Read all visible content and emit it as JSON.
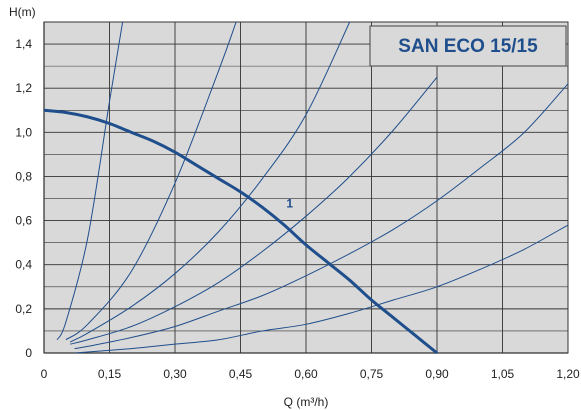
{
  "chart_data": {
    "type": "line",
    "title": "SAN ECO 15/15",
    "xlabel": "Q (m³/h)",
    "ylabel": "H(m)",
    "xlim": [
      0,
      1.2
    ],
    "ylim": [
      0,
      1.5
    ],
    "x_ticks": [
      "0",
      "0,15",
      "0,30",
      "0,45",
      "0,60",
      "0,75",
      "0,90",
      "1,05",
      "1,20"
    ],
    "x_tick_values": [
      0,
      0.15,
      0.3,
      0.45,
      0.6,
      0.75,
      0.9,
      1.05,
      1.2
    ],
    "y_ticks": [
      "0",
      "0,2",
      "0,4",
      "0,6",
      "0,8",
      "1,0",
      "1,2",
      "1,4"
    ],
    "y_tick_values": [
      0,
      0.2,
      0.4,
      0.6,
      0.8,
      1.0,
      1.2,
      1.4
    ],
    "grid": true,
    "background_color": "#d9d9d9",
    "curve_color": "#1f4e8c",
    "pump_curve": {
      "name": "1",
      "x": [
        0,
        0.05,
        0.1,
        0.15,
        0.2,
        0.25,
        0.3,
        0.35,
        0.4,
        0.45,
        0.5,
        0.55,
        0.6,
        0.65,
        0.7,
        0.75,
        0.8,
        0.85,
        0.9
      ],
      "y": [
        1.1,
        1.09,
        1.07,
        1.04,
        1.0,
        0.96,
        0.91,
        0.85,
        0.79,
        0.73,
        0.66,
        0.58,
        0.49,
        0.41,
        0.33,
        0.24,
        0.16,
        0.08,
        0.0
      ]
    },
    "system_curves": [
      {
        "x": [
          0.03,
          0.05,
          0.1,
          0.15,
          0.18
        ],
        "y": [
          0.06,
          0.14,
          0.52,
          1.14,
          1.5
        ]
      },
      {
        "x": [
          0.05,
          0.1,
          0.2,
          0.3,
          0.4,
          0.44
        ],
        "y": [
          0.06,
          0.13,
          0.37,
          0.77,
          1.28,
          1.5
        ]
      },
      {
        "x": [
          0.06,
          0.1,
          0.2,
          0.3,
          0.4,
          0.5,
          0.6,
          0.7
        ],
        "y": [
          0.05,
          0.09,
          0.21,
          0.36,
          0.55,
          0.79,
          1.08,
          1.5
        ]
      },
      {
        "x": [
          0.06,
          0.1,
          0.2,
          0.3,
          0.4,
          0.5,
          0.6,
          0.7,
          0.8,
          0.9
        ],
        "y": [
          0.04,
          0.06,
          0.12,
          0.21,
          0.32,
          0.46,
          0.62,
          0.8,
          1.01,
          1.25
        ]
      },
      {
        "x": [
          0.07,
          0.1,
          0.2,
          0.3,
          0.4,
          0.5,
          0.6,
          0.7,
          0.8,
          0.9,
          1.0,
          1.1,
          1.2
        ],
        "y": [
          0.02,
          0.03,
          0.07,
          0.12,
          0.19,
          0.26,
          0.35,
          0.45,
          0.56,
          0.69,
          0.84,
          1.0,
          1.22
        ]
      },
      {
        "x": [
          0.07,
          0.2,
          0.3,
          0.4,
          0.5,
          0.6,
          0.7,
          0.8,
          0.9,
          1.0,
          1.1,
          1.2
        ],
        "y": [
          0.0,
          0.02,
          0.04,
          0.06,
          0.1,
          0.13,
          0.18,
          0.24,
          0.3,
          0.38,
          0.47,
          0.58
        ]
      }
    ]
  }
}
